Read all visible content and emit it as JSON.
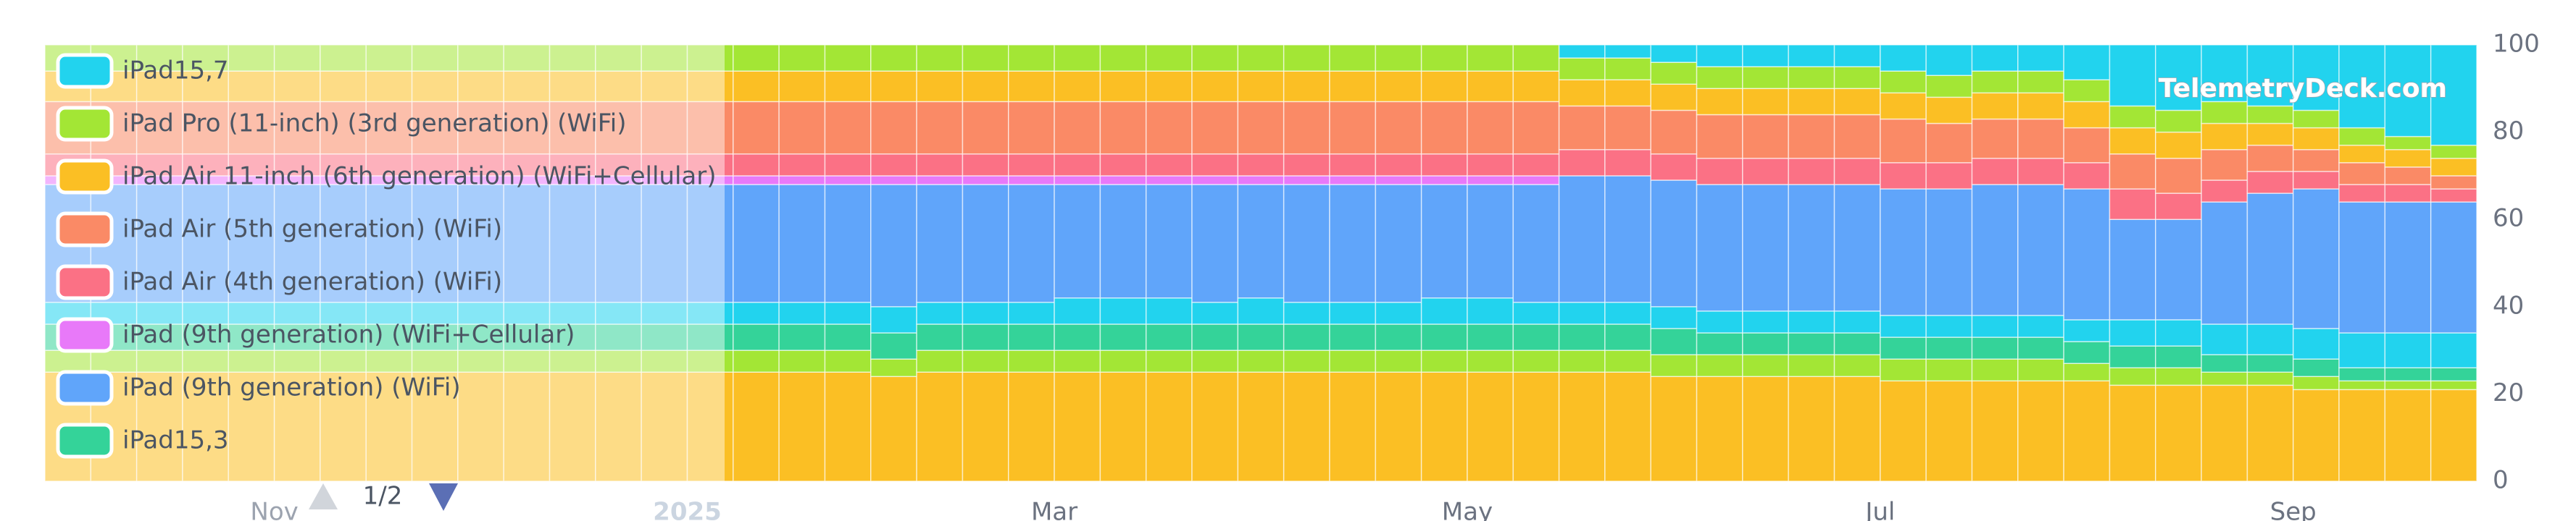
{
  "chart_data": {
    "type": "stacked-bar",
    "categories": [
      null,
      null,
      null,
      null,
      null,
      "Nov",
      null,
      null,
      null,
      null,
      null,
      null,
      null,
      null,
      "2025",
      null,
      null,
      null,
      null,
      null,
      null,
      null,
      "Mar",
      null,
      null,
      null,
      null,
      null,
      null,
      null,
      null,
      "May",
      null,
      null,
      null,
      null,
      null,
      null,
      null,
      null,
      "Jul",
      null,
      null,
      null,
      null,
      null,
      null,
      null,
      null,
      "Sep",
      null,
      null,
      null
    ],
    "series": [
      {
        "color": "#fbbf24",
        "values": [
          25,
          25,
          25,
          25,
          25,
          25,
          25,
          25,
          25,
          25,
          25,
          25,
          25,
          25,
          25,
          25,
          25,
          25,
          24,
          25,
          25,
          25,
          25,
          25,
          25,
          25,
          25,
          25,
          25,
          25,
          25,
          25,
          25,
          25,
          25,
          24,
          24,
          24,
          24,
          24,
          23,
          23,
          23,
          23,
          23,
          22,
          22,
          22,
          22,
          21,
          21,
          21,
          21
        ]
      },
      {
        "color": "#a3e635",
        "values": [
          5,
          5,
          5,
          5,
          5,
          5,
          5,
          5,
          5,
          5,
          5,
          5,
          5,
          5,
          5,
          5,
          5,
          5,
          4,
          5,
          5,
          5,
          5,
          5,
          5,
          5,
          5,
          5,
          5,
          5,
          5,
          5,
          5,
          5,
          5,
          5,
          5,
          5,
          5,
          5,
          5,
          5,
          5,
          5,
          4,
          4,
          4,
          3,
          3,
          3,
          2,
          2,
          2
        ]
      },
      {
        "name": "iPad15,3",
        "color": "#34d399",
        "values": [
          6,
          6,
          6,
          6,
          6,
          6,
          6,
          6,
          6,
          6,
          6,
          6,
          6,
          6,
          6,
          6,
          6,
          6,
          6,
          6,
          6,
          6,
          6,
          6,
          6,
          6,
          6,
          6,
          6,
          6,
          6,
          6,
          6,
          6,
          6,
          6,
          5,
          5,
          5,
          5,
          5,
          5,
          5,
          5,
          5,
          5,
          5,
          4,
          4,
          4,
          3,
          3,
          3
        ]
      },
      {
        "color": "#22d3ee",
        "values": [
          5,
          5,
          5,
          5,
          5,
          5,
          5,
          5,
          5,
          5,
          5,
          5,
          5,
          5,
          5,
          5,
          5,
          5,
          6,
          5,
          5,
          5,
          6,
          6,
          6,
          5,
          6,
          5,
          5,
          5,
          6,
          6,
          5,
          5,
          5,
          5,
          5,
          5,
          5,
          5,
          5,
          5,
          5,
          5,
          5,
          6,
          6,
          7,
          7,
          7,
          8,
          8,
          8
        ]
      },
      {
        "name": "iPad (9th generation) (WiFi)",
        "color": "#60a5fa",
        "values": [
          27,
          27,
          27,
          27,
          27,
          27,
          27,
          27,
          27,
          27,
          27,
          27,
          27,
          27,
          27,
          27,
          27,
          27,
          28,
          27,
          27,
          27,
          26,
          26,
          26,
          27,
          26,
          27,
          27,
          27,
          26,
          26,
          27,
          29,
          29,
          29,
          29,
          29,
          29,
          29,
          29,
          29,
          30,
          30,
          30,
          23,
          23,
          28,
          30,
          32,
          30,
          30,
          30
        ]
      },
      {
        "name": "iPad (9th generation) (WiFi+Cellular)",
        "color": "#e879f9",
        "values": [
          2,
          2,
          2,
          2,
          2,
          2,
          2,
          2,
          2,
          2,
          2,
          2,
          2,
          2,
          2,
          2,
          2,
          2,
          2,
          2,
          2,
          2,
          2,
          2,
          2,
          2,
          2,
          2,
          2,
          2,
          2,
          2,
          2,
          0,
          0,
          0,
          0,
          0,
          0,
          0,
          0,
          0,
          0,
          0,
          0,
          0,
          0,
          0,
          0,
          0,
          0,
          0,
          0
        ]
      },
      {
        "name": "iPad Air (4th generation) (WiFi)",
        "color": "#fb7185",
        "values": [
          5,
          5,
          5,
          5,
          5,
          5,
          5,
          5,
          5,
          5,
          5,
          5,
          5,
          5,
          5,
          5,
          5,
          5,
          5,
          5,
          5,
          5,
          5,
          5,
          5,
          5,
          5,
          5,
          5,
          5,
          5,
          5,
          5,
          6,
          6,
          6,
          6,
          6,
          6,
          6,
          6,
          6,
          6,
          6,
          6,
          7,
          6,
          5,
          5,
          4,
          4,
          4,
          3
        ]
      },
      {
        "name": "iPad Air (5th generation) (WiFi)",
        "color": "#fa8a66",
        "values": [
          12,
          12,
          12,
          12,
          12,
          12,
          12,
          12,
          12,
          12,
          12,
          12,
          12,
          12,
          12,
          12,
          12,
          12,
          12,
          12,
          12,
          12,
          12,
          12,
          12,
          12,
          12,
          12,
          12,
          12,
          12,
          12,
          12,
          10,
          10,
          10,
          10,
          10,
          10,
          10,
          10,
          9,
          9,
          9,
          8,
          8,
          8,
          7,
          6,
          5,
          5,
          4,
          3
        ]
      },
      {
        "name": "iPad Air 11-inch (6th generation) (WiFi+Cellular)",
        "color": "#fbbf24",
        "values": [
          7,
          7,
          7,
          7,
          7,
          7,
          7,
          7,
          7,
          7,
          7,
          7,
          7,
          7,
          7,
          7,
          7,
          7,
          7,
          7,
          7,
          7,
          7,
          7,
          7,
          7,
          7,
          7,
          7,
          7,
          7,
          7,
          7,
          6,
          6,
          6,
          6,
          6,
          6,
          6,
          6,
          6,
          6,
          6,
          6,
          6,
          6,
          6,
          5,
          5,
          4,
          4,
          4
        ]
      },
      {
        "name": "iPad Pro (11-inch) (3rd generation) (WiFi)",
        "color": "#a3e635",
        "values": [
          6,
          6,
          6,
          6,
          6,
          6,
          6,
          6,
          6,
          6,
          6,
          6,
          6,
          6,
          6,
          6,
          6,
          6,
          6,
          6,
          6,
          6,
          6,
          6,
          6,
          6,
          6,
          6,
          6,
          6,
          6,
          6,
          6,
          5,
          5,
          5,
          5,
          5,
          5,
          5,
          5,
          5,
          5,
          5,
          5,
          5,
          5,
          5,
          4,
          4,
          4,
          3,
          3
        ]
      },
      {
        "name": "iPad15,7",
        "color": "#22d3ee",
        "values": [
          0,
          0,
          0,
          0,
          0,
          0,
          0,
          0,
          0,
          0,
          0,
          0,
          0,
          0,
          0,
          0,
          0,
          0,
          0,
          0,
          0,
          0,
          0,
          0,
          0,
          0,
          0,
          0,
          0,
          0,
          0,
          0,
          0,
          3,
          3,
          4,
          5,
          5,
          5,
          5,
          6,
          7,
          6,
          6,
          8,
          14,
          15,
          13,
          14,
          15,
          19,
          21,
          23
        ]
      }
    ],
    "ylim": [
      0,
      100
    ],
    "yticks": [
      0,
      20,
      40,
      60,
      80,
      100
    ],
    "grid": false,
    "legend": "top-left",
    "legend_page": "1/2",
    "watermark": "TelemetryDeck.com"
  }
}
